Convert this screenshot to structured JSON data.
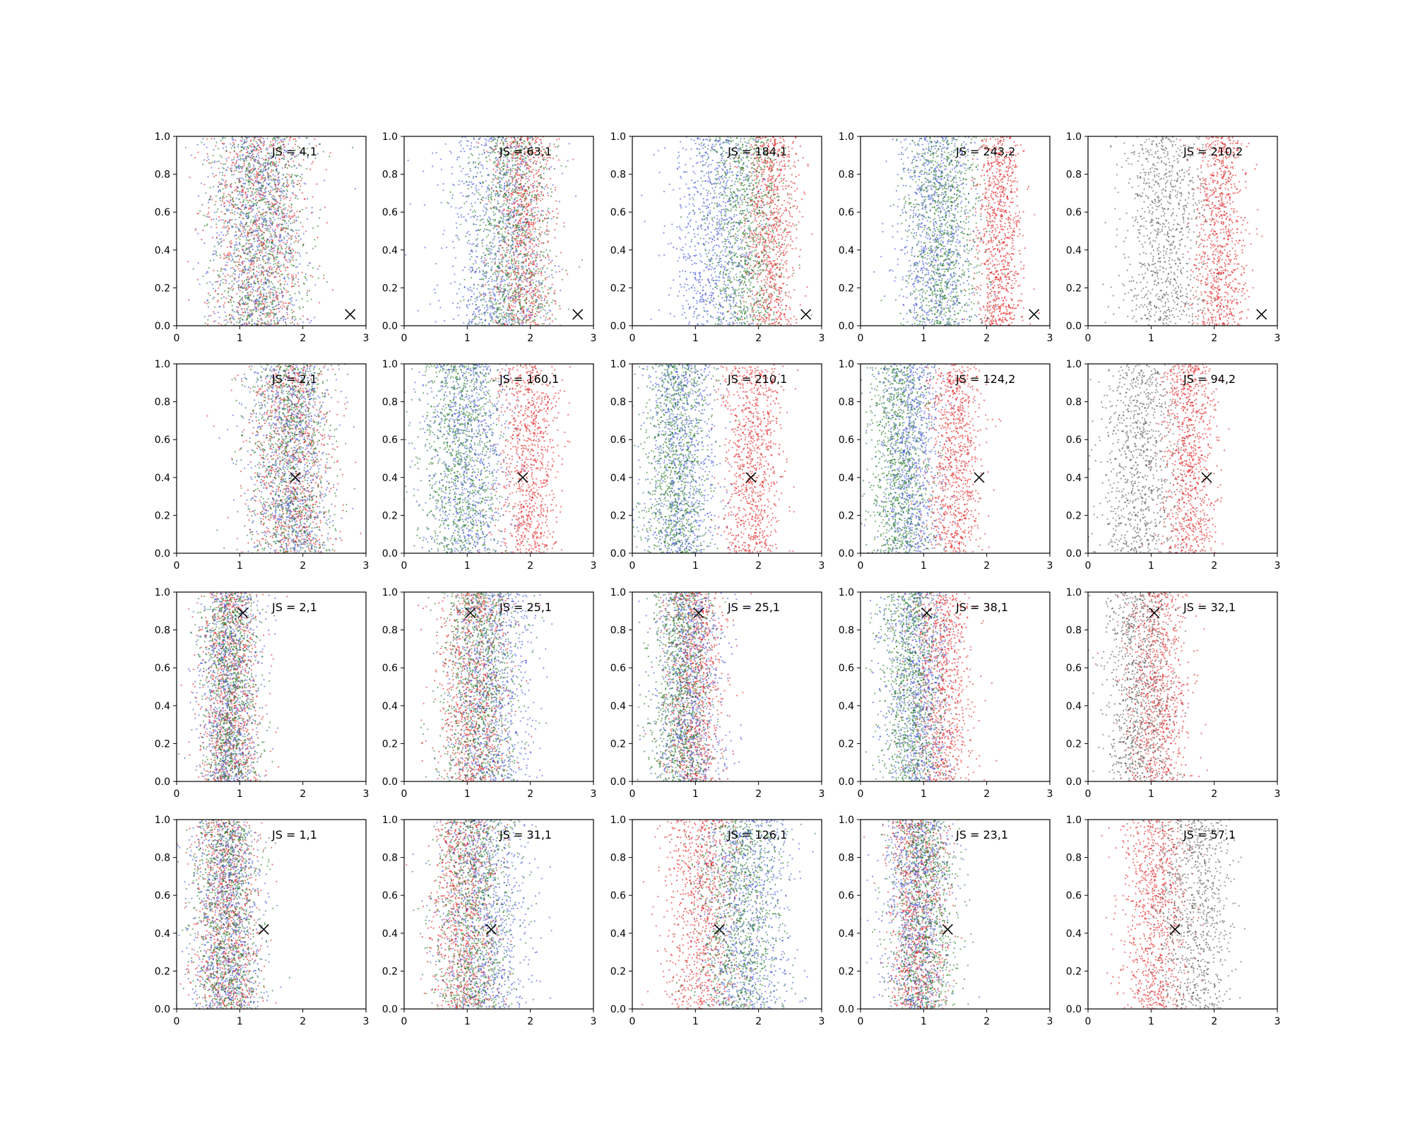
{
  "figure": {
    "rows": 4,
    "cols": 5,
    "panel_annotation_prefix": "JS = ",
    "colors": {
      "red": "#e41a1c",
      "blue": "#3b4fd9",
      "green": "#1f7a1f",
      "gray": "#555555",
      "marker": "#000000",
      "axis": "#000000"
    }
  },
  "chart_data": [
    {
      "type": "scatter",
      "annotation": "JS = 4,1",
      "xlim": [
        0,
        3
      ],
      "ylim": [
        0,
        1
      ],
      "xticks": [
        "0",
        "1",
        "2",
        "3"
      ],
      "yticks": [
        "0.0",
        "0.2",
        "0.4",
        "0.6",
        "0.8",
        "1.0"
      ],
      "marker": {
        "x": 2.75,
        "y": 0.06,
        "symbol": "x"
      },
      "series": [
        {
          "color": "red",
          "center_x": 1.3,
          "spread": 0.65
        },
        {
          "color": "blue",
          "center_x": 1.3,
          "spread": 0.65
        },
        {
          "color": "green",
          "center_x": 1.3,
          "spread": 0.65
        }
      ]
    },
    {
      "type": "scatter",
      "annotation": "JS = 63,1",
      "xlim": [
        0,
        3
      ],
      "ylim": [
        0,
        1
      ],
      "xticks": [
        "0",
        "1",
        "2",
        "3"
      ],
      "yticks": [
        "0.0",
        "0.2",
        "0.4",
        "0.6",
        "0.8",
        "1.0"
      ],
      "marker": {
        "x": 2.75,
        "y": 0.06,
        "symbol": "x"
      },
      "series": [
        {
          "color": "red",
          "center_x": 1.9,
          "spread": 0.4
        },
        {
          "color": "blue",
          "center_x": 1.5,
          "spread": 0.7
        },
        {
          "color": "green",
          "center_x": 1.7,
          "spread": 0.55
        }
      ]
    },
    {
      "type": "scatter",
      "annotation": "JS = 184,1",
      "xlim": [
        0,
        3
      ],
      "ylim": [
        0,
        1
      ],
      "xticks": [
        "0",
        "1",
        "2",
        "3"
      ],
      "yticks": [
        "0.0",
        "0.2",
        "0.4",
        "0.6",
        "0.8",
        "1.0"
      ],
      "marker": {
        "x": 2.75,
        "y": 0.06,
        "symbol": "x"
      },
      "series": [
        {
          "color": "red",
          "center_x": 2.2,
          "spread": 0.35
        },
        {
          "color": "blue",
          "center_x": 1.3,
          "spread": 0.6
        },
        {
          "color": "green",
          "center_x": 1.8,
          "spread": 0.5
        }
      ]
    },
    {
      "type": "scatter",
      "annotation": "JS = 243,2",
      "xlim": [
        0,
        3
      ],
      "ylim": [
        0,
        1
      ],
      "xticks": [
        "0",
        "1",
        "2",
        "3"
      ],
      "yticks": [
        "0.0",
        "0.2",
        "0.4",
        "0.6",
        "0.8",
        "1.0"
      ],
      "marker": {
        "x": 2.75,
        "y": 0.06,
        "symbol": "x"
      },
      "series": [
        {
          "color": "red",
          "center_x": 2.2,
          "spread": 0.3
        },
        {
          "color": "blue",
          "center_x": 1.2,
          "spread": 0.5
        },
        {
          "color": "green",
          "center_x": 1.3,
          "spread": 0.5
        }
      ]
    },
    {
      "type": "scatter",
      "annotation": "JS = 210,2",
      "xlim": [
        0,
        3
      ],
      "ylim": [
        0,
        1
      ],
      "xticks": [
        "0",
        "1",
        "2",
        "3"
      ],
      "yticks": [
        "0.0",
        "0.2",
        "0.4",
        "0.6",
        "0.8",
        "1.0"
      ],
      "marker": {
        "x": 2.75,
        "y": 0.06,
        "symbol": "x"
      },
      "series": [
        {
          "color": "red",
          "center_x": 2.1,
          "spread": 0.35
        },
        {
          "color": "gray",
          "center_x": 1.2,
          "spread": 0.55
        }
      ]
    },
    {
      "type": "scatter",
      "annotation": "JS = 2,1",
      "xlim": [
        0,
        3
      ],
      "ylim": [
        0,
        1
      ],
      "xticks": [
        "0",
        "1",
        "2",
        "3"
      ],
      "yticks": [
        "0.0",
        "0.2",
        "0.4",
        "0.6",
        "0.8",
        "1.0"
      ],
      "marker": {
        "x": 1.88,
        "y": 0.4,
        "symbol": "x"
      },
      "series": [
        {
          "color": "red",
          "center_x": 1.8,
          "spread": 0.55
        },
        {
          "color": "blue",
          "center_x": 1.8,
          "spread": 0.55
        },
        {
          "color": "green",
          "center_x": 1.8,
          "spread": 0.55
        }
      ]
    },
    {
      "type": "scatter",
      "annotation": "JS = 160,1",
      "xlim": [
        0,
        3
      ],
      "ylim": [
        0,
        1
      ],
      "xticks": [
        "0",
        "1",
        "2",
        "3"
      ],
      "yticks": [
        "0.0",
        "0.2",
        "0.4",
        "0.6",
        "0.8",
        "1.0"
      ],
      "marker": {
        "x": 1.88,
        "y": 0.4,
        "symbol": "x"
      },
      "series": [
        {
          "color": "red",
          "center_x": 2.0,
          "spread": 0.4
        },
        {
          "color": "blue",
          "center_x": 1.0,
          "spread": 0.55
        },
        {
          "color": "green",
          "center_x": 0.9,
          "spread": 0.55
        }
      ]
    },
    {
      "type": "scatter",
      "annotation": "JS = 210,1",
      "xlim": [
        0,
        3
      ],
      "ylim": [
        0,
        1
      ],
      "xticks": [
        "0",
        "1",
        "2",
        "3"
      ],
      "yticks": [
        "0.0",
        "0.2",
        "0.4",
        "0.6",
        "0.8",
        "1.0"
      ],
      "marker": {
        "x": 1.88,
        "y": 0.4,
        "symbol": "x"
      },
      "series": [
        {
          "color": "red",
          "center_x": 1.9,
          "spread": 0.4
        },
        {
          "color": "blue",
          "center_x": 0.8,
          "spread": 0.45
        },
        {
          "color": "green",
          "center_x": 0.7,
          "spread": 0.45
        }
      ]
    },
    {
      "type": "scatter",
      "annotation": "JS = 124,2",
      "xlim": [
        0,
        3
      ],
      "ylim": [
        0,
        1
      ],
      "xticks": [
        "0",
        "1",
        "2",
        "3"
      ],
      "yticks": [
        "0.0",
        "0.2",
        "0.4",
        "0.6",
        "0.8",
        "1.0"
      ],
      "marker": {
        "x": 1.88,
        "y": 0.4,
        "symbol": "x"
      },
      "series": [
        {
          "color": "red",
          "center_x": 1.5,
          "spread": 0.35
        },
        {
          "color": "blue",
          "center_x": 0.8,
          "spread": 0.4
        },
        {
          "color": "green",
          "center_x": 0.6,
          "spread": 0.4
        }
      ]
    },
    {
      "type": "scatter",
      "annotation": "JS = 94,2",
      "xlim": [
        0,
        3
      ],
      "ylim": [
        0,
        1
      ],
      "xticks": [
        "0",
        "1",
        "2",
        "3"
      ],
      "yticks": [
        "0.0",
        "0.2",
        "0.4",
        "0.6",
        "0.8",
        "1.0"
      ],
      "marker": {
        "x": 1.88,
        "y": 0.4,
        "symbol": "x"
      },
      "series": [
        {
          "color": "red",
          "center_x": 1.6,
          "spread": 0.35
        },
        {
          "color": "gray",
          "center_x": 0.8,
          "spread": 0.5
        }
      ]
    },
    {
      "type": "scatter",
      "annotation": "JS = 2,1",
      "xlim": [
        0,
        3
      ],
      "ylim": [
        0,
        1
      ],
      "xticks": [
        "0",
        "1",
        "2",
        "3"
      ],
      "yticks": [
        "0.0",
        "0.2",
        "0.4",
        "0.6",
        "0.8",
        "1.0"
      ],
      "marker": {
        "x": 1.05,
        "y": 0.89,
        "symbol": "x"
      },
      "series": [
        {
          "color": "red",
          "center_x": 0.85,
          "spread": 0.4
        },
        {
          "color": "blue",
          "center_x": 0.85,
          "spread": 0.4
        },
        {
          "color": "green",
          "center_x": 0.85,
          "spread": 0.4
        }
      ]
    },
    {
      "type": "scatter",
      "annotation": "JS = 25,1",
      "xlim": [
        0,
        3
      ],
      "ylim": [
        0,
        1
      ],
      "xticks": [
        "0",
        "1",
        "2",
        "3"
      ],
      "yticks": [
        "0.0",
        "0.2",
        "0.4",
        "0.6",
        "0.8",
        "1.0"
      ],
      "marker": {
        "x": 1.05,
        "y": 0.89,
        "symbol": "x"
      },
      "series": [
        {
          "color": "red",
          "center_x": 1.1,
          "spread": 0.45
        },
        {
          "color": "blue",
          "center_x": 1.4,
          "spread": 0.55
        },
        {
          "color": "green",
          "center_x": 1.2,
          "spread": 0.5
        }
      ]
    },
    {
      "type": "scatter",
      "annotation": "JS = 25,1",
      "xlim": [
        0,
        3
      ],
      "ylim": [
        0,
        1
      ],
      "xticks": [
        "0",
        "1",
        "2",
        "3"
      ],
      "yticks": [
        "0.0",
        "0.2",
        "0.4",
        "0.6",
        "0.8",
        "1.0"
      ],
      "marker": {
        "x": 1.05,
        "y": 0.89,
        "symbol": "x"
      },
      "series": [
        {
          "color": "red",
          "center_x": 1.0,
          "spread": 0.4
        },
        {
          "color": "blue",
          "center_x": 0.9,
          "spread": 0.45
        },
        {
          "color": "green",
          "center_x": 0.75,
          "spread": 0.4
        }
      ]
    },
    {
      "type": "scatter",
      "annotation": "JS = 38,1",
      "xlim": [
        0,
        3
      ],
      "ylim": [
        0,
        1
      ],
      "xticks": [
        "0",
        "1",
        "2",
        "3"
      ],
      "yticks": [
        "0.0",
        "0.2",
        "0.4",
        "0.6",
        "0.8",
        "1.0"
      ],
      "marker": {
        "x": 1.05,
        "y": 0.89,
        "symbol": "x"
      },
      "series": [
        {
          "color": "red",
          "center_x": 1.3,
          "spread": 0.4
        },
        {
          "color": "blue",
          "center_x": 0.9,
          "spread": 0.45
        },
        {
          "color": "green",
          "center_x": 0.8,
          "spread": 0.4
        }
      ]
    },
    {
      "type": "scatter",
      "annotation": "JS = 32,1",
      "xlim": [
        0,
        3
      ],
      "ylim": [
        0,
        1
      ],
      "xticks": [
        "0",
        "1",
        "2",
        "3"
      ],
      "yticks": [
        "0.0",
        "0.2",
        "0.4",
        "0.6",
        "0.8",
        "1.0"
      ],
      "marker": {
        "x": 1.05,
        "y": 0.89,
        "symbol": "x"
      },
      "series": [
        {
          "color": "red",
          "center_x": 1.1,
          "spread": 0.45
        },
        {
          "color": "gray",
          "center_x": 0.8,
          "spread": 0.45
        }
      ]
    },
    {
      "type": "scatter",
      "annotation": "JS = 1,1",
      "xlim": [
        0,
        3
      ],
      "ylim": [
        0,
        1
      ],
      "xticks": [
        "0",
        "1",
        "2",
        "3"
      ],
      "yticks": [
        "0.0",
        "0.2",
        "0.4",
        "0.6",
        "0.8",
        "1.0"
      ],
      "marker": {
        "x": 1.38,
        "y": 0.42,
        "symbol": "x"
      },
      "series": [
        {
          "color": "red",
          "center_x": 0.8,
          "spread": 0.45
        },
        {
          "color": "blue",
          "center_x": 0.8,
          "spread": 0.45
        },
        {
          "color": "green",
          "center_x": 0.8,
          "spread": 0.45
        }
      ]
    },
    {
      "type": "scatter",
      "annotation": "JS = 31,1",
      "xlim": [
        0,
        3
      ],
      "ylim": [
        0,
        1
      ],
      "xticks": [
        "0",
        "1",
        "2",
        "3"
      ],
      "yticks": [
        "0.0",
        "0.2",
        "0.4",
        "0.6",
        "0.8",
        "1.0"
      ],
      "marker": {
        "x": 1.38,
        "y": 0.42,
        "symbol": "x"
      },
      "series": [
        {
          "color": "red",
          "center_x": 0.95,
          "spread": 0.45
        },
        {
          "color": "blue",
          "center_x": 1.3,
          "spread": 0.6
        },
        {
          "color": "green",
          "center_x": 1.1,
          "spread": 0.55
        }
      ]
    },
    {
      "type": "scatter",
      "annotation": "JS = 126,1",
      "xlim": [
        0,
        3
      ],
      "ylim": [
        0,
        1
      ],
      "xticks": [
        "0",
        "1",
        "2",
        "3"
      ],
      "yticks": [
        "0.0",
        "0.2",
        "0.4",
        "0.6",
        "0.8",
        "1.0"
      ],
      "marker": {
        "x": 1.38,
        "y": 0.42,
        "symbol": "x"
      },
      "series": [
        {
          "color": "red",
          "center_x": 1.1,
          "spread": 0.5
        },
        {
          "color": "blue",
          "center_x": 1.8,
          "spread": 0.55
        },
        {
          "color": "green",
          "center_x": 1.7,
          "spread": 0.55
        }
      ]
    },
    {
      "type": "scatter",
      "annotation": "JS = 23,1",
      "xlim": [
        0,
        3
      ],
      "ylim": [
        0,
        1
      ],
      "xticks": [
        "0",
        "1",
        "2",
        "3"
      ],
      "yticks": [
        "0.0",
        "0.2",
        "0.4",
        "0.6",
        "0.8",
        "1.0"
      ],
      "marker": {
        "x": 1.38,
        "y": 0.42,
        "symbol": "x"
      },
      "series": [
        {
          "color": "red",
          "center_x": 0.9,
          "spread": 0.4
        },
        {
          "color": "blue",
          "center_x": 0.9,
          "spread": 0.45
        },
        {
          "color": "green",
          "center_x": 1.0,
          "spread": 0.45
        }
      ]
    },
    {
      "type": "scatter",
      "annotation": "JS = 57,1",
      "xlim": [
        0,
        3
      ],
      "ylim": [
        0,
        1
      ],
      "xticks": [
        "0",
        "1",
        "2",
        "3"
      ],
      "yticks": [
        "0.0",
        "0.2",
        "0.4",
        "0.6",
        "0.8",
        "1.0"
      ],
      "marker": {
        "x": 1.38,
        "y": 0.42,
        "symbol": "x"
      },
      "series": [
        {
          "color": "red",
          "center_x": 1.05,
          "spread": 0.45
        },
        {
          "color": "gray",
          "center_x": 1.7,
          "spread": 0.5
        }
      ]
    }
  ]
}
